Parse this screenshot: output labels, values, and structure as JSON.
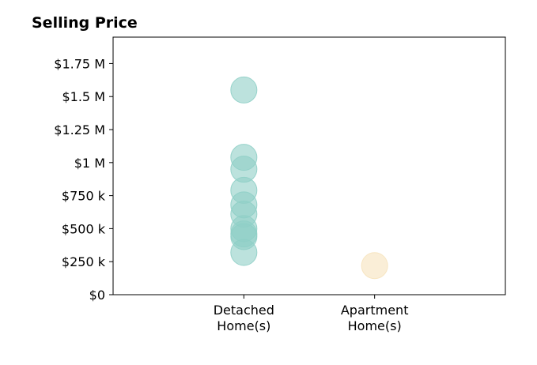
{
  "chart_data": {
    "type": "scatter",
    "title": "Selling Price",
    "xlabel": "",
    "ylabel": "",
    "categories": [
      [
        "Detached",
        "Home(s)"
      ],
      [
        "Apartment",
        "Home(s)"
      ]
    ],
    "yticks": [
      {
        "value": 0,
        "label": "$0"
      },
      {
        "value": 250000,
        "label": "$250 k"
      },
      {
        "value": 500000,
        "label": "$500 k"
      },
      {
        "value": 750000,
        "label": "$750 k"
      },
      {
        "value": 1000000,
        "label": "$1 M"
      },
      {
        "value": 1250000,
        "label": "$1.25 M"
      },
      {
        "value": 1500000,
        "label": "$1.5 M"
      },
      {
        "value": 1750000,
        "label": "$1.75 M"
      }
    ],
    "ylim": [
      0,
      1950000
    ],
    "xlim": [
      -1,
      2
    ],
    "grid": false,
    "series": [
      {
        "category": 0,
        "color": "#8fcfc6",
        "values": [
          1550000,
          1040000,
          950000,
          790000,
          680000,
          610000,
          500000,
          460000,
          440000,
          320000
        ]
      },
      {
        "category": 1,
        "color": "#f6e3bc",
        "values": [
          220000
        ]
      }
    ]
  }
}
